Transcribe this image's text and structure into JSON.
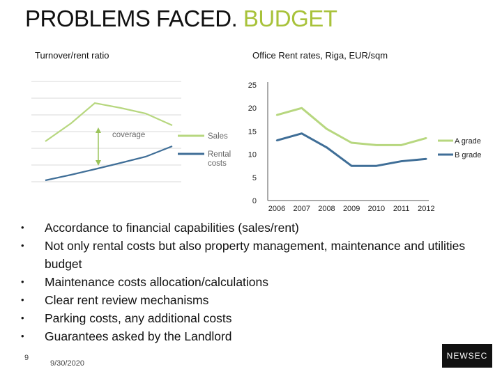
{
  "slide": {
    "title_main": "PROBLEMS FACED.",
    "title_accent": "BUDGET",
    "page_number": "9",
    "date": "9/30/2020",
    "logo_text": "NEWSEC"
  },
  "left_diagram": {
    "title": "Turnover/rent ratio",
    "annotation": "coverage",
    "legend": [
      "Sales",
      "Rental costs"
    ],
    "colors": {
      "sales": "#b7d77f",
      "rental": "#3f6e97",
      "grid": "#d9d9d9",
      "arrow": "#9bc45a"
    }
  },
  "chart_data": {
    "type": "line",
    "title": "Office Rent rates, Riga, EUR/sqm",
    "categories": [
      "2006",
      "2007",
      "2008",
      "2009",
      "2010",
      "2011",
      "2012"
    ],
    "ylim": [
      0,
      25
    ],
    "yticks": [
      "0",
      "5",
      "10",
      "15",
      "20",
      "25"
    ],
    "series": [
      {
        "name": "A grade",
        "values": [
          18.5,
          20,
          15.5,
          12.5,
          12,
          12,
          13.5
        ],
        "color": "#b7d77f"
      },
      {
        "name": "B grade",
        "values": [
          13,
          14.5,
          11.5,
          7.5,
          7.5,
          8.5,
          9
        ],
        "color": "#3f6e97"
      }
    ],
    "grid": false,
    "legend_position": "right"
  },
  "bullets": [
    "Accordance to financial capabilities (sales/rent)",
    "Not only rental costs but also property management, maintenance and utilities budget",
    "Maintenance costs allocation/calculations",
    "Clear rent review mechanisms",
    "Parking costs, any additional costs",
    "Guarantees asked by the Landlord"
  ],
  "bullet_marker": "•"
}
